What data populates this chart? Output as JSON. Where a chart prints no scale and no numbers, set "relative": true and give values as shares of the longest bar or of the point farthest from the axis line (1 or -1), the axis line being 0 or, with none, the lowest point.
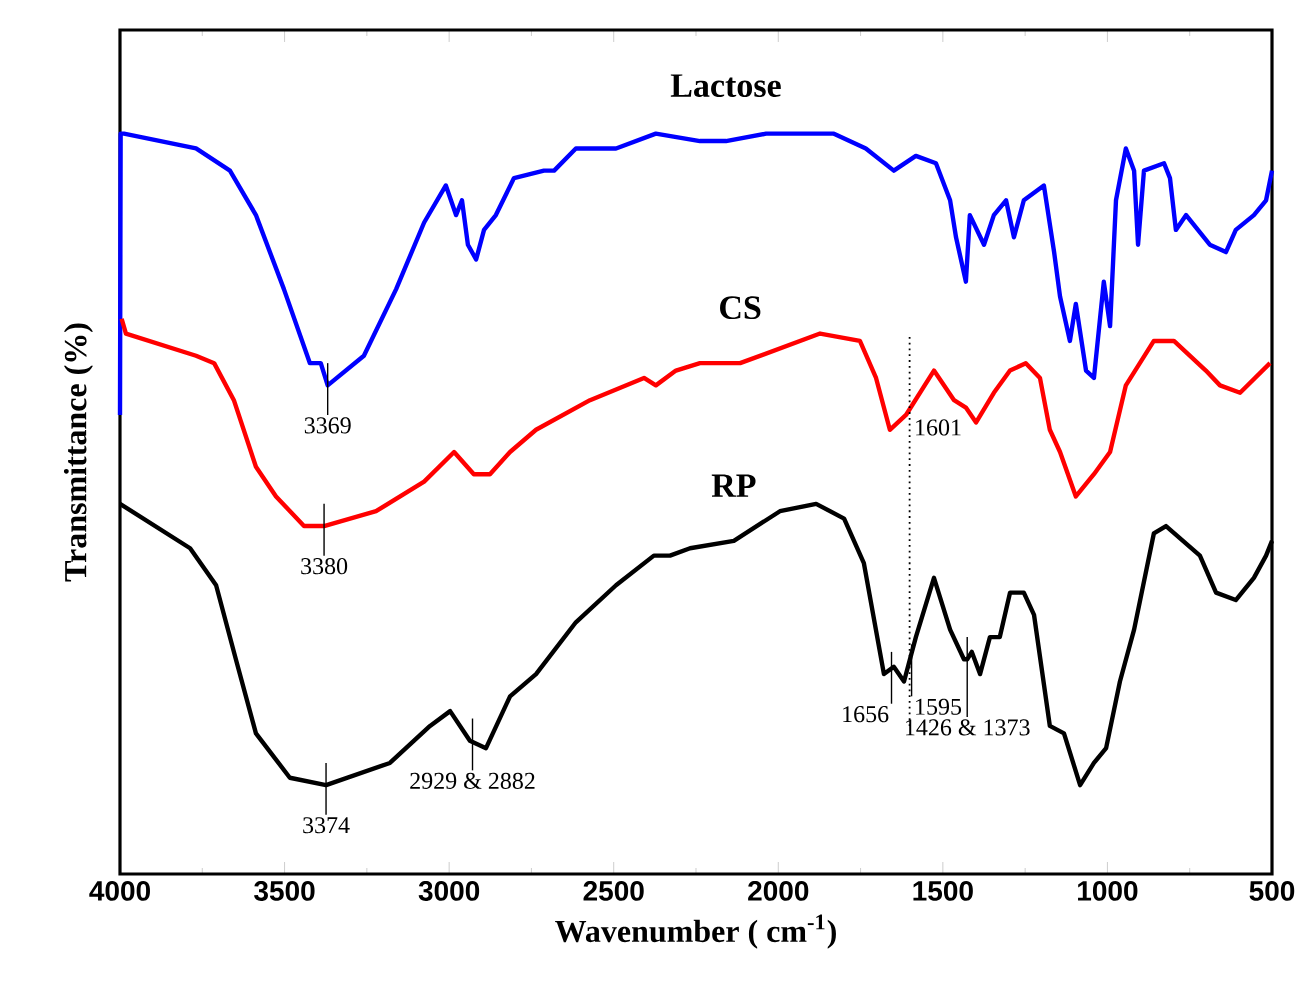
{
  "chart_data": {
    "type": "line",
    "relative": true,
    "xlabel": "Wavenumber ( cm$^{-1}$)",
    "ylabel": "Transmittance (%)",
    "xlim": [
      4000,
      500
    ],
    "xticks": [
      4000,
      3500,
      3000,
      2500,
      2000,
      1500,
      1000,
      500
    ],
    "series": [
      {
        "name": "Lactose",
        "color": "#0000ff",
        "x": [
          4000,
          3998,
          3988,
          3769,
          3666,
          3587,
          3502,
          3423,
          3390,
          3369,
          3259,
          3161,
          3076,
          3010,
          2979,
          2961,
          2943,
          2918,
          2894,
          2858,
          2803,
          2712,
          2681,
          2615,
          2493,
          2372,
          2238,
          2159,
          2037,
          1831,
          1734,
          1649,
          1582,
          1521,
          1478,
          1460,
          1430,
          1418,
          1375,
          1345,
          1308,
          1284,
          1254,
          1193,
          1162,
          1144,
          1114,
          1096,
          1065,
          1041,
          1011,
          992,
          974,
          944,
          919,
          907,
          889,
          828,
          810,
          792,
          761,
          689,
          640,
          610,
          555,
          518,
          500
        ],
        "values": [
          0.62,
          1.0,
          1.0,
          0.98,
          0.95,
          0.89,
          0.79,
          0.69,
          0.69,
          0.66,
          0.7,
          0.79,
          0.88,
          0.93,
          0.89,
          0.91,
          0.85,
          0.83,
          0.87,
          0.89,
          0.94,
          0.95,
          0.95,
          0.98,
          0.98,
          1.0,
          0.99,
          0.99,
          1.0,
          1.0,
          0.98,
          0.95,
          0.97,
          0.96,
          0.91,
          0.86,
          0.8,
          0.89,
          0.85,
          0.89,
          0.91,
          0.86,
          0.91,
          0.93,
          0.84,
          0.78,
          0.72,
          0.77,
          0.68,
          0.67,
          0.8,
          0.74,
          0.91,
          0.98,
          0.95,
          0.85,
          0.95,
          0.96,
          0.94,
          0.87,
          0.89,
          0.85,
          0.84,
          0.87,
          0.89,
          0.91,
          0.95
        ]
      },
      {
        "name": "CS",
        "color": "#ff0000",
        "x": [
          3995,
          3982,
          3769,
          3714,
          3654,
          3587,
          3526,
          3441,
          3380,
          3222,
          3076,
          2985,
          2925,
          2876,
          2815,
          2736,
          2572,
          2408,
          2372,
          2311,
          2238,
          2116,
          1873,
          1752,
          1703,
          1661,
          1612,
          1527,
          1466,
          1430,
          1399,
          1345,
          1296,
          1248,
          1205,
          1175,
          1144,
          1096,
          1041,
          992,
          944,
          859,
          798,
          701,
          658,
          597,
          506
        ],
        "values": [
          0.75,
          0.73,
          0.7,
          0.69,
          0.64,
          0.55,
          0.51,
          0.47,
          0.47,
          0.49,
          0.53,
          0.57,
          0.54,
          0.54,
          0.57,
          0.6,
          0.64,
          0.67,
          0.66,
          0.68,
          0.69,
          0.69,
          0.73,
          0.72,
          0.67,
          0.6,
          0.62,
          0.68,
          0.64,
          0.63,
          0.61,
          0.65,
          0.68,
          0.69,
          0.67,
          0.6,
          0.57,
          0.51,
          0.54,
          0.57,
          0.66,
          0.72,
          0.72,
          0.68,
          0.66,
          0.65,
          0.69
        ]
      },
      {
        "name": "RP",
        "color": "#000000",
        "x": [
          4000,
          3787,
          3708,
          3648,
          3587,
          3484,
          3374,
          3180,
          3058,
          2997,
          2937,
          2888,
          2815,
          2736,
          2615,
          2493,
          2378,
          2329,
          2268,
          2135,
          1995,
          1885,
          1800,
          1740,
          1679,
          1649,
          1618,
          1582,
          1527,
          1478,
          1436,
          1426,
          1412,
          1387,
          1357,
          1327,
          1296,
          1254,
          1223,
          1175,
          1132,
          1083,
          1041,
          1004,
          962,
          919,
          859,
          822,
          719,
          670,
          610,
          555,
          518,
          500
        ],
        "values": [
          0.5,
          0.44,
          0.39,
          0.29,
          0.19,
          0.13,
          0.12,
          0.15,
          0.2,
          0.22,
          0.18,
          0.17,
          0.24,
          0.27,
          0.34,
          0.39,
          0.43,
          0.43,
          0.44,
          0.45,
          0.49,
          0.5,
          0.48,
          0.42,
          0.27,
          0.28,
          0.26,
          0.32,
          0.4,
          0.33,
          0.29,
          0.29,
          0.3,
          0.27,
          0.32,
          0.32,
          0.38,
          0.38,
          0.35,
          0.2,
          0.19,
          0.12,
          0.15,
          0.17,
          0.26,
          0.33,
          0.46,
          0.47,
          0.43,
          0.38,
          0.37,
          0.4,
          0.43,
          0.45
        ]
      }
    ],
    "annotations": [
      {
        "text": "3369",
        "x": 3369,
        "y": 0.66
      },
      {
        "text": "3380",
        "x": 3380,
        "y": 0.47
      },
      {
        "text": "3374",
        "x": 3374,
        "y": 0.12
      },
      {
        "text": "2929 & 2882",
        "x": 2929,
        "y": 0.18
      },
      {
        "text": "1656",
        "x": 1656,
        "y": 0.27
      },
      {
        "text": "1595",
        "x": 1595,
        "y": 0.28
      },
      {
        "text": "1426 & 1373",
        "x": 1426,
        "y": 0.29
      }
    ],
    "ref_lines": [
      {
        "axis": "x",
        "value": 1601,
        "label": "1601",
        "line_style": "dotted"
      }
    ]
  }
}
